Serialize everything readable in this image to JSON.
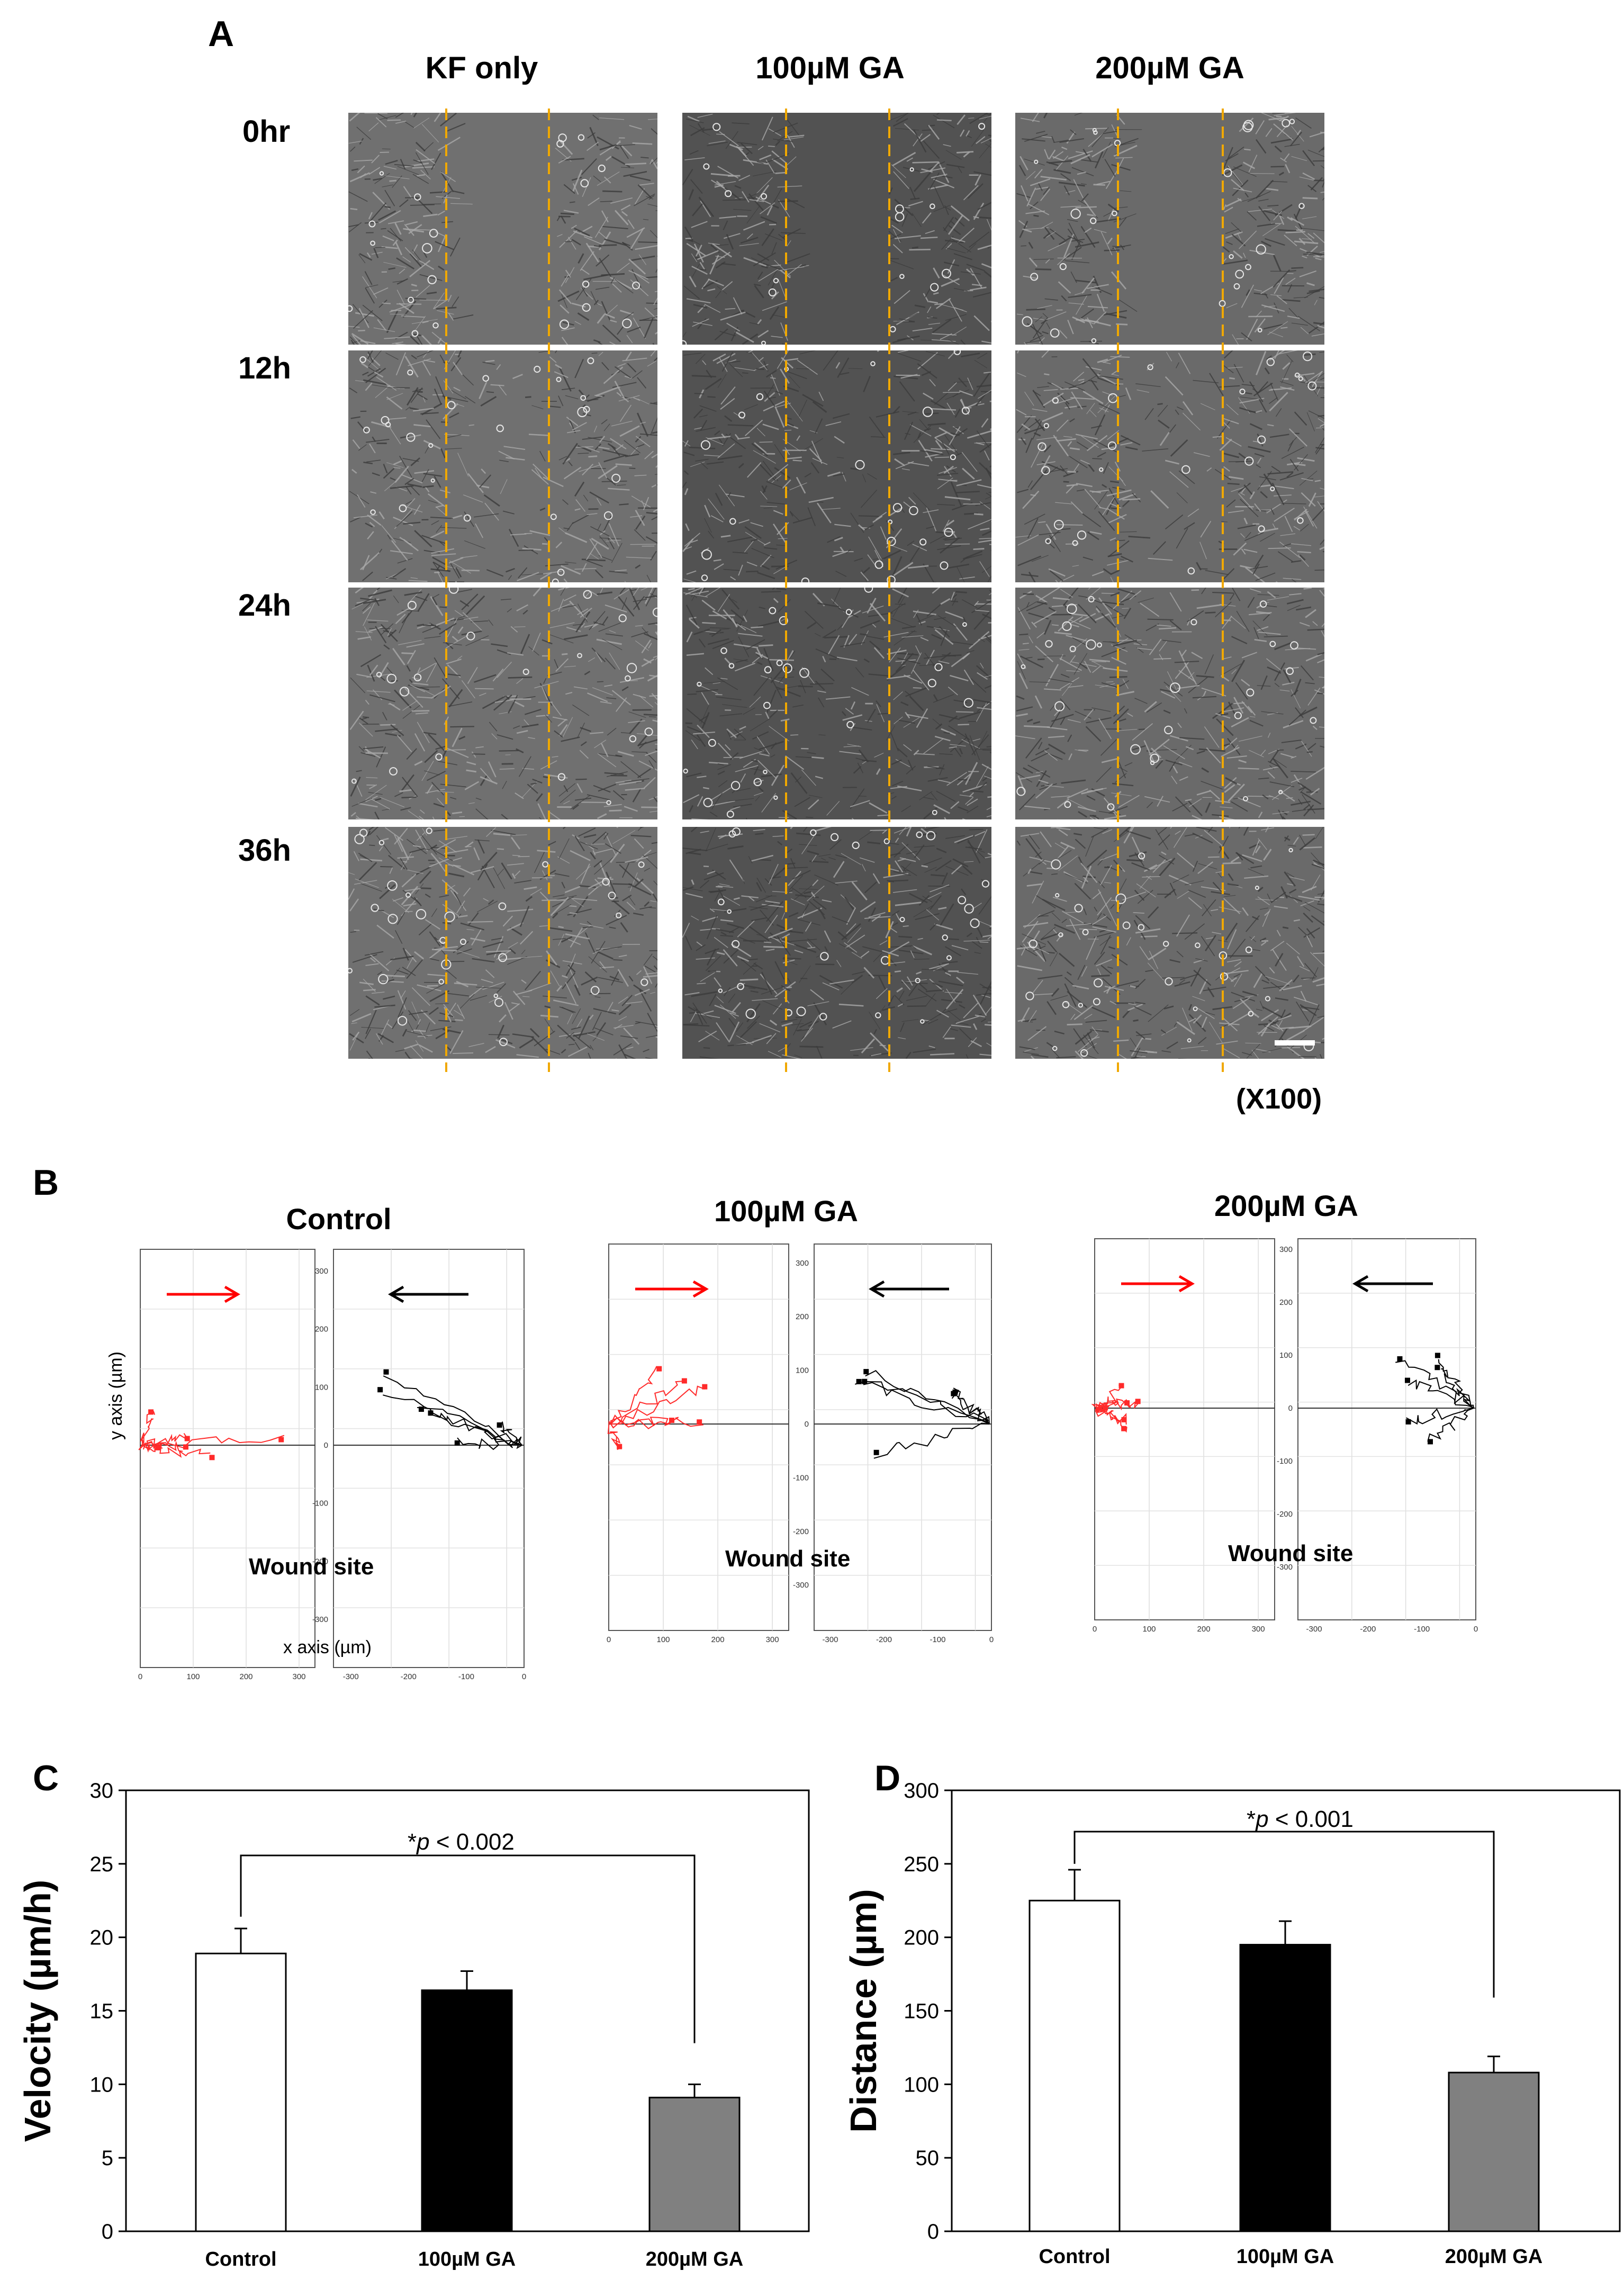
{
  "panelA": {
    "letter": "A",
    "columns": [
      "KF only",
      "100µM GA",
      "200µM GA"
    ],
    "rows": [
      "0hr",
      "12h",
      "24h",
      "36h"
    ],
    "magnification": "(X100)"
  },
  "panelB": {
    "letter": "B",
    "groups": [
      {
        "title": "Control",
        "wound": "Wound site"
      },
      {
        "title": "100µM GA",
        "wound": "Wound site"
      },
      {
        "title": "200µM GA",
        "wound": "Wound site"
      }
    ],
    "y_axis_label": "y axis (µm)",
    "x_axis_label": "x axis (µm)",
    "left_ticks_x": [
      "0",
      "100",
      "200",
      "300"
    ],
    "right_ticks_x": [
      "-300",
      "-200",
      "-100",
      "0"
    ],
    "ticks_y": [
      "300",
      "200",
      "100",
      "0",
      "-100",
      "-200",
      "-300"
    ],
    "colors": {
      "left_tracks": "#ff2a2a",
      "right_tracks": "#000000",
      "arrow_right": "#ff0000",
      "arrow_left": "#000000"
    }
  },
  "panelC": {
    "letter": "C",
    "sig_prefix": "*",
    "sig_p": "p",
    "sig_rest": " < 0.002"
  },
  "panelD": {
    "letter": "D",
    "sig_prefix": "*",
    "sig_p": "p",
    "sig_rest": " < 0.001"
  },
  "chart_data": [
    {
      "type": "bar",
      "panel": "C",
      "categories": [
        "Control",
        "100µM GA",
        "200µM GA"
      ],
      "values": [
        18.9,
        16.4,
        9.1
      ],
      "errors": [
        1.7,
        1.3,
        0.9
      ],
      "ylabel": "Velocity  (µm/h)",
      "ylim": [
        0,
        30
      ],
      "yticks": [
        "0",
        "5",
        "10",
        "15",
        "20",
        "25",
        "30"
      ],
      "bar_colors": [
        "#ffffff",
        "#000000",
        "#808080"
      ],
      "annotation": "*p < 0.002"
    },
    {
      "type": "bar",
      "panel": "D",
      "categories": [
        "Control",
        "100µM GA",
        "200µM GA"
      ],
      "values": [
        225,
        195,
        108
      ],
      "errors": [
        21,
        16,
        11
      ],
      "ylabel": "Distance (µm)",
      "ylim": [
        0,
        300
      ],
      "yticks": [
        "0",
        "50",
        "100",
        "150",
        "200",
        "250",
        "300"
      ],
      "bar_colors": [
        "#ffffff",
        "#000000",
        "#808080"
      ],
      "annotation": "*p < 0.001"
    }
  ]
}
